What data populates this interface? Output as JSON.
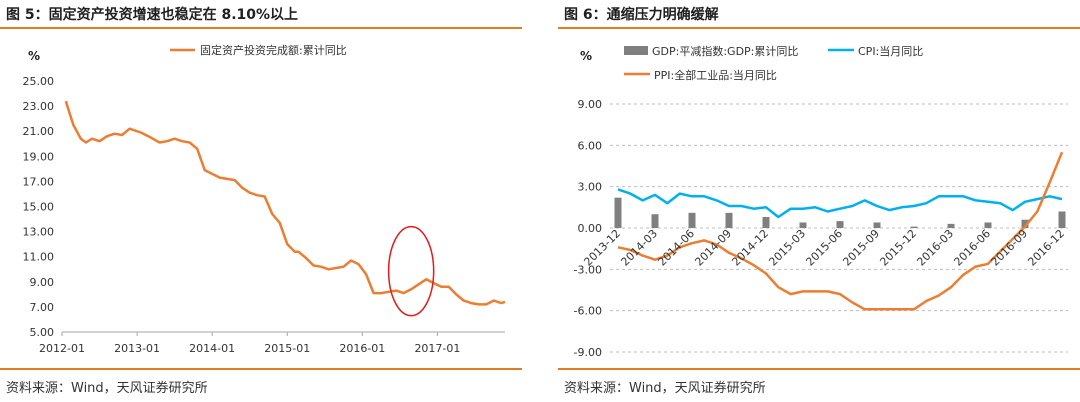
{
  "figures": [
    {
      "title": "图 5：固定资产投资增速也稳定在 8.10%以上",
      "source": "资料来源：Wind，天风证券研究所"
    },
    {
      "title": "图 6：通缩压力明确缓解",
      "source": "资料来源：Wind，天风证券研究所"
    }
  ],
  "chart_data": [
    {
      "type": "line",
      "title": "",
      "ylabel": "%",
      "ylim": [
        5,
        25
      ],
      "yticks": [
        "25.00",
        "23.00",
        "21.00",
        "19.00",
        "17.00",
        "15.00",
        "13.00",
        "11.00",
        "9.00",
        "7.00",
        "5.00"
      ],
      "xticks": [
        "2012-01",
        "2013-01",
        "2014-01",
        "2015-01",
        "2016-01",
        "2017-01"
      ],
      "xlim": [
        2012.0,
        2017.9
      ],
      "legend_position": "top",
      "series": [
        {
          "name": "固定资产投资完成额:累计同比",
          "color": "#ed7d31",
          "x": [
            2012.05,
            2012.15,
            2012.25,
            2012.32,
            2012.4,
            2012.5,
            2012.6,
            2012.7,
            2012.8,
            2012.9,
            2013.05,
            2013.15,
            2013.3,
            2013.4,
            2013.5,
            2013.6,
            2013.7,
            2013.8,
            2013.9,
            2014.0,
            2014.1,
            2014.2,
            2014.3,
            2014.4,
            2014.5,
            2014.6,
            2014.7,
            2014.8,
            2014.9,
            2015.0,
            2015.1,
            2015.15,
            2015.25,
            2015.35,
            2015.45,
            2015.55,
            2015.65,
            2015.75,
            2015.85,
            2015.95,
            2016.05,
            2016.15,
            2016.25,
            2016.35,
            2016.45,
            2016.55,
            2016.65,
            2016.75,
            2016.85,
            2016.95,
            2017.05,
            2017.15,
            2017.25,
            2017.35,
            2017.45,
            2017.55,
            2017.65,
            2017.75,
            2017.85,
            2017.9
          ],
          "y": [
            23.4,
            21.5,
            20.4,
            20.1,
            20.4,
            20.2,
            20.6,
            20.8,
            20.7,
            21.2,
            20.9,
            20.6,
            20.1,
            20.2,
            20.4,
            20.2,
            20.1,
            19.6,
            17.9,
            17.6,
            17.3,
            17.2,
            17.1,
            16.5,
            16.1,
            15.9,
            15.8,
            14.4,
            13.7,
            12.0,
            11.4,
            11.4,
            10.9,
            10.3,
            10.2,
            10.0,
            10.1,
            10.2,
            10.7,
            10.4,
            9.6,
            8.1,
            8.1,
            8.2,
            8.3,
            8.1,
            8.4,
            8.8,
            9.2,
            8.9,
            8.6,
            8.6,
            8.0,
            7.5,
            7.3,
            7.2,
            7.2,
            7.5,
            7.3,
            7.4
          ]
        }
      ],
      "annotations": [
        {
          "type": "ellipse",
          "color": "#e21b1b",
          "x_range": [
            2016.35,
            2016.95
          ],
          "y_range": [
            6.3,
            13.4
          ]
        }
      ]
    },
    {
      "type": "bar+line",
      "title": "",
      "ylabel": "%",
      "ylim": [
        -9,
        9
      ],
      "yticks": [
        "9.00",
        "6.00",
        "3.00",
        "0.00",
        "-3.00",
        "-6.00",
        "-9.00"
      ],
      "categories": [
        "2013-12",
        "2014-01",
        "2014-02",
        "2014-03",
        "2014-04",
        "2014-05",
        "2014-06",
        "2014-07",
        "2014-08",
        "2014-09",
        "2014-10",
        "2014-11",
        "2014-12",
        "2015-01",
        "2015-02",
        "2015-03",
        "2015-04",
        "2015-05",
        "2015-06",
        "2015-07",
        "2015-08",
        "2015-09",
        "2015-10",
        "2015-11",
        "2015-12",
        "2016-01",
        "2016-02",
        "2016-03",
        "2016-04",
        "2016-05",
        "2016-06",
        "2016-07",
        "2016-08",
        "2016-09",
        "2016-10",
        "2016-11",
        "2016-12"
      ],
      "xtick_labels": [
        "2013-12",
        "2014-03",
        "2014-06",
        "2014-09",
        "2014-12",
        "2015-03",
        "2015-06",
        "2015-09",
        "2015-12",
        "2016-03",
        "2016-06",
        "2016-09",
        "2016-12"
      ],
      "legend_position": "top",
      "series": [
        {
          "name": "GDP:平减指数:GDP:累计同比",
          "type": "bar",
          "color": "#7f7f7f",
          "values": [
            2.2,
            null,
            null,
            1.0,
            null,
            null,
            1.1,
            null,
            null,
            1.1,
            null,
            null,
            0.8,
            null,
            null,
            0.4,
            null,
            null,
            0.5,
            null,
            null,
            0.4,
            null,
            null,
            0.1,
            null,
            null,
            0.3,
            null,
            null,
            0.4,
            null,
            null,
            0.6,
            null,
            null,
            1.2
          ]
        },
        {
          "name": "CPI:当月同比",
          "type": "line",
          "color": "#00b0f0",
          "values": [
            2.8,
            2.5,
            2.0,
            2.4,
            1.8,
            2.5,
            2.3,
            2.3,
            2.0,
            1.6,
            1.6,
            1.4,
            1.5,
            0.8,
            1.4,
            1.4,
            1.5,
            1.2,
            1.4,
            1.6,
            2.0,
            1.6,
            1.3,
            1.5,
            1.6,
            1.8,
            2.3,
            2.3,
            2.3,
            2.0,
            1.9,
            1.8,
            1.3,
            1.9,
            2.1,
            2.3,
            2.1
          ]
        },
        {
          "name": "PPI:全部工业品:当月同比",
          "type": "line",
          "color": "#ed7d31",
          "values": [
            -1.4,
            -1.6,
            -2.0,
            -2.3,
            -2.0,
            -1.4,
            -1.1,
            -0.9,
            -1.2,
            -1.8,
            -2.2,
            -2.7,
            -3.3,
            -4.3,
            -4.8,
            -4.6,
            -4.6,
            -4.6,
            -4.8,
            -5.4,
            -5.9,
            -5.9,
            -5.9,
            -5.9,
            -5.9,
            -5.3,
            -4.9,
            -4.3,
            -3.4,
            -2.8,
            -2.6,
            -1.7,
            -0.8,
            0.1,
            1.2,
            3.3,
            5.5
          ]
        }
      ]
    }
  ]
}
